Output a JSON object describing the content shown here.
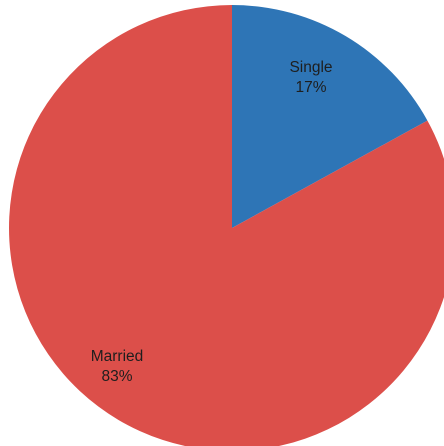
{
  "chart_data": {
    "type": "pie",
    "start_angle_deg": 0,
    "direction": "clockwise",
    "slices": [
      {
        "label": "Single",
        "value": 17,
        "percent_label": "17%",
        "color": "#2e75b6"
      },
      {
        "label": "Married",
        "value": 83,
        "percent_label": "83%",
        "color": "#dc4f4a"
      }
    ],
    "title": "",
    "legend": "none"
  }
}
